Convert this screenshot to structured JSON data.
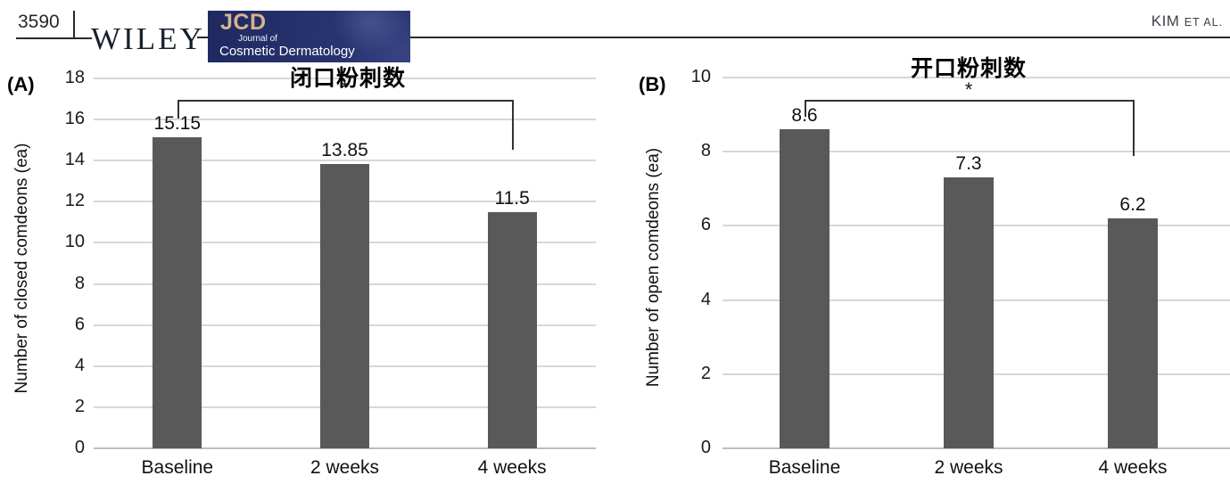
{
  "page": {
    "page_number": "3590",
    "publisher_wordmark": "WILEY",
    "running_head_name": "KIM",
    "running_head_etal": "ET AL.",
    "journal_logo": {
      "abbr": "JCD",
      "line1": "Journal of",
      "line2": "Cosmetic Dermatology"
    }
  },
  "colors": {
    "bar": "#595959",
    "gridline": "#d7d7d7",
    "axis": "#bdbdbd",
    "bracket": "#333333",
    "logo_navy": "#232e6a",
    "logo_tan": "#d8b38c"
  },
  "chart_data": [
    {
      "type": "bar",
      "panel_label": "(A)",
      "title": "闭口粉刺数",
      "ylabel": "Number of closed comdeons (ea)",
      "categories": [
        "Baseline",
        "2 weeks",
        "4 weeks"
      ],
      "values": [
        15.15,
        13.85,
        11.5
      ],
      "value_labels": [
        "15.15",
        "13.85",
        "11.5"
      ],
      "ylim": [
        0,
        18
      ],
      "ytick_step": 2,
      "grid": true,
      "significance": {
        "label": "*",
        "from_category": "Baseline",
        "to_category": "4 weeks"
      }
    },
    {
      "type": "bar",
      "panel_label": "(B)",
      "title": "开口粉刺数",
      "ylabel": "Number of open comdeons (ea)",
      "categories": [
        "Baseline",
        "2 weeks",
        "4 weeks"
      ],
      "values": [
        8.6,
        7.3,
        6.2
      ],
      "value_labels": [
        "8.6",
        "7.3",
        "6.2"
      ],
      "ylim": [
        0,
        10
      ],
      "ytick_step": 2,
      "grid": true,
      "significance": {
        "label": "*",
        "from_category": "Baseline",
        "to_category": "4 weeks"
      }
    }
  ]
}
